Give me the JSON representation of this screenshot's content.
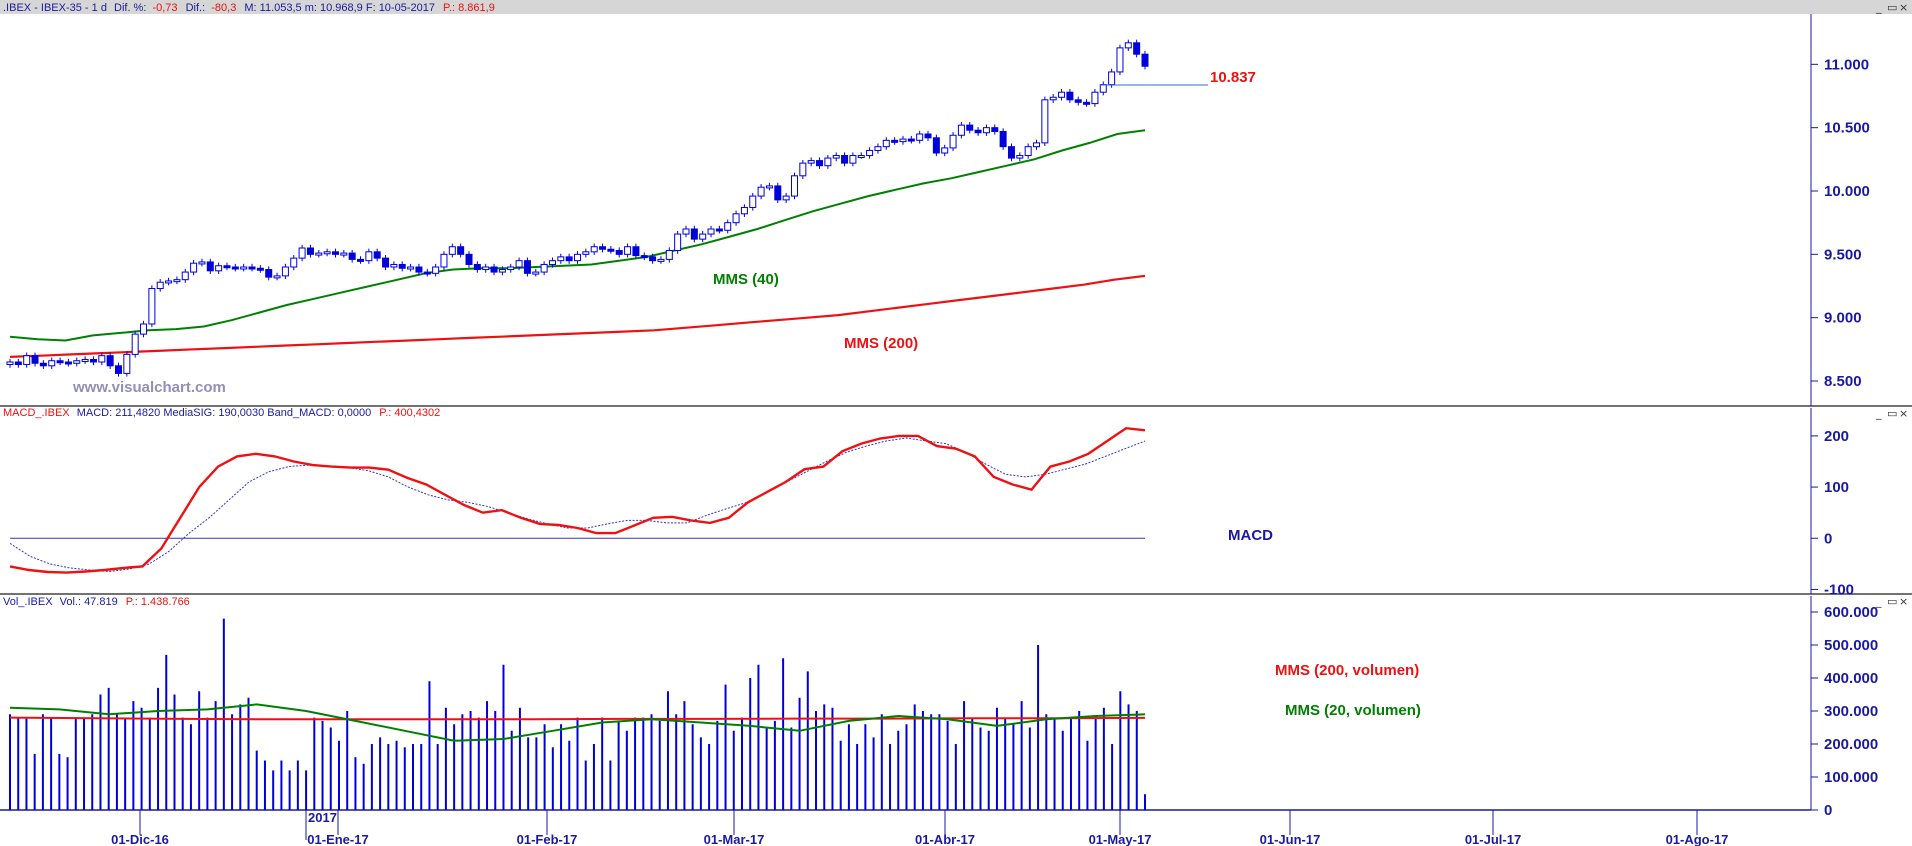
{
  "header": {
    "price": {
      "name": ".IBEX - IBEX-35 -  1 d",
      "dif_pct_label": "Dif. %:",
      "dif_pct_value": "-0,73",
      "dif_label": "Dif.:",
      "dif_value": "-80,3",
      "rest": "M: 11.053,5  m: 10.968,9  F: 10-05-2017",
      "p_value": "P.: 8.861,9"
    },
    "macd": {
      "name": "MACD_.IBEX",
      "rest": "MACD: 211,4820  MediaSIG: 190,0030  Band_MACD: 0,0000",
      "p_value": "P.: 400,4302"
    },
    "volume": {
      "name": "Vol_.IBEX",
      "rest": "Vol.: 47.819",
      "p_value": "P.: 1.438.766"
    }
  },
  "window_buttons": {
    "minimize": "_",
    "restore": "▭",
    "close": "×"
  },
  "labels": {
    "watermark": "www.visualchart.com",
    "mms40": "MMS (40)",
    "mms200": "MMS (200)",
    "last_level": "10.837",
    "macd": "MACD",
    "vol_mms200": "MMS (200, volumen)",
    "vol_mms20": "MMS (20, volumen)",
    "year": "2017"
  },
  "colors": {
    "candles": "#0000dd",
    "mms40": "#008000",
    "mms200": "#ee1111",
    "macd_line": "#ee1111",
    "signal_line": "#3333cc",
    "volume_bars": "#0000dd",
    "axis_text": "#1a1aa0",
    "header_bg": "#d6d6d6"
  },
  "chart_data": [
    {
      "type": "candlestick",
      "title": "IBEX-35 daily",
      "x_ticks": [
        "01-Dic-16",
        "01-Ene-17",
        "01-Feb-17",
        "01-Mar-17",
        "01-Abr-17",
        "01-May-17",
        "01-Jun-17",
        "01-Jul-17",
        "01-Ago-17"
      ],
      "y_ticks": [
        "8.500",
        "9.000",
        "9.500",
        "10.000",
        "10.500",
        "11.000"
      ],
      "ylim": [
        8350,
        11350
      ],
      "close": [
        8650,
        8630,
        8700,
        8640,
        8620,
        8660,
        8650,
        8640,
        8660,
        8670,
        8650,
        8700,
        8620,
        8560,
        8710,
        8870,
        8950,
        9230,
        9280,
        9290,
        9300,
        9360,
        9430,
        9440,
        9370,
        9410,
        9400,
        9390,
        9400,
        9390,
        9380,
        9320,
        9330,
        9400,
        9470,
        9550,
        9500,
        9510,
        9520,
        9500,
        9510,
        9460,
        9450,
        9520,
        9470,
        9400,
        9420,
        9390,
        9400,
        9360,
        9350,
        9400,
        9500,
        9560,
        9500,
        9420,
        9380,
        9400,
        9360,
        9380,
        9400,
        9450,
        9350,
        9360,
        9420,
        9450,
        9480,
        9450,
        9500,
        9520,
        9560,
        9540,
        9530,
        9500,
        9560,
        9490,
        9480,
        9450,
        9460,
        9530,
        9660,
        9700,
        9620,
        9660,
        9700,
        9690,
        9750,
        9820,
        9870,
        9960,
        10030,
        10040,
        9930,
        9960,
        10120,
        10220,
        10240,
        10200,
        10260,
        10280,
        10220,
        10280,
        10280,
        10320,
        10350,
        10400,
        10390,
        10410,
        10400,
        10450,
        10420,
        10300,
        10340,
        10440,
        10520,
        10480,
        10460,
        10500,
        10470,
        10350,
        10260,
        10280,
        10350,
        10380,
        10720,
        10740,
        10780,
        10720,
        10700,
        10690,
        10780,
        10840,
        10940,
        11130,
        11170,
        11080,
        10985
      ],
      "series": [
        {
          "name": "MMS (40)",
          "values": [
            8850,
            8830,
            8820,
            8860,
            8880,
            8900,
            8910,
            8930,
            8980,
            9040,
            9100,
            9150,
            9200,
            9250,
            9300,
            9350,
            9380,
            9390,
            9390,
            9400,
            9410,
            9420,
            9450,
            9480,
            9530,
            9580,
            9640,
            9700,
            9770,
            9840,
            9900,
            9960,
            10010,
            10060,
            10100,
            10150,
            10200,
            10250,
            10320,
            10380,
            10450,
            10480
          ]
        },
        {
          "name": "MMS (200)",
          "values": [
            8690,
            8700,
            8710,
            8720,
            8730,
            8740,
            8750,
            8760,
            8770,
            8780,
            8790,
            8800,
            8810,
            8820,
            8830,
            8840,
            8850,
            8860,
            8870,
            8880,
            8890,
            8900,
            8920,
            8940,
            8960,
            8980,
            9000,
            9020,
            9050,
            9080,
            9110,
            9140,
            9170,
            9200,
            9230,
            9260,
            9300,
            9330
          ]
        }
      ],
      "annotation": {
        "label": "10.837",
        "value": 10837
      }
    },
    {
      "type": "line",
      "title": "MACD",
      "y_ticks": [
        "200",
        "100",
        "0",
        "-100"
      ],
      "ylim": [
        -105,
        235
      ],
      "series": [
        {
          "name": "MACD",
          "values": [
            -55,
            -62,
            -66,
            -67,
            -65,
            -62,
            -58,
            -55,
            -20,
            40,
            100,
            140,
            160,
            165,
            160,
            150,
            143,
            140,
            138,
            138,
            134,
            118,
            105,
            85,
            65,
            50,
            55,
            40,
            28,
            26,
            20,
            10,
            10,
            25,
            40,
            42,
            35,
            30,
            40,
            70,
            90,
            110,
            135,
            140,
            170,
            185,
            195,
            200,
            200,
            180,
            175,
            160,
            120,
            105,
            95,
            140,
            150,
            165,
            190,
            215,
            211
          ]
        },
        {
          "name": "MediaSIG",
          "values": [
            -10,
            -35,
            -50,
            -58,
            -62,
            -65,
            -60,
            -50,
            -25,
            10,
            40,
            75,
            110,
            130,
            140,
            143,
            141,
            138,
            132,
            120,
            100,
            85,
            75,
            70,
            62,
            50,
            38,
            28,
            20,
            20,
            28,
            35,
            35,
            30,
            30,
            45,
            58,
            70,
            90,
            110,
            130,
            150,
            168,
            180,
            190,
            196,
            190,
            185,
            168,
            145,
            125,
            120,
            125,
            135,
            145,
            160,
            175,
            190
          ]
        }
      ],
      "band": 0
    },
    {
      "type": "bar",
      "title": "Volume",
      "y_ticks": [
        "600.000",
        "500.000",
        "400.000",
        "300.000",
        "200.000",
        "100.000",
        "0"
      ],
      "ylim": [
        0,
        600000
      ],
      "values": [
        290000,
        280000,
        280000,
        170000,
        290000,
        280000,
        170000,
        160000,
        280000,
        280000,
        290000,
        350000,
        370000,
        290000,
        280000,
        330000,
        310000,
        280000,
        370000,
        470000,
        350000,
        280000,
        260000,
        360000,
        280000,
        330000,
        580000,
        290000,
        320000,
        340000,
        180000,
        150000,
        120000,
        150000,
        120000,
        150000,
        120000,
        280000,
        270000,
        250000,
        210000,
        300000,
        160000,
        140000,
        200000,
        220000,
        200000,
        210000,
        190000,
        200000,
        200000,
        390000,
        200000,
        310000,
        260000,
        290000,
        300000,
        280000,
        330000,
        300000,
        440000,
        240000,
        310000,
        220000,
        220000,
        260000,
        190000,
        260000,
        210000,
        280000,
        150000,
        200000,
        280000,
        150000,
        270000,
        240000,
        280000,
        280000,
        290000,
        270000,
        360000,
        290000,
        330000,
        260000,
        220000,
        200000,
        270000,
        380000,
        240000,
        280000,
        400000,
        440000,
        250000,
        270000,
        460000,
        250000,
        340000,
        420000,
        300000,
        320000,
        310000,
        210000,
        260000,
        200000,
        260000,
        220000,
        290000,
        200000,
        240000,
        260000,
        320000,
        300000,
        290000,
        290000,
        270000,
        200000,
        330000,
        280000,
        250000,
        240000,
        310000,
        280000,
        260000,
        330000,
        250000,
        500000,
        290000,
        280000,
        240000,
        280000,
        300000,
        210000,
        280000,
        310000,
        200000,
        360000,
        320000,
        300000,
        47819
      ],
      "series": [
        {
          "name": "MMS (200, volumen)",
          "values": [
            280000,
            278000,
            276000,
            275000,
            275000,
            275000,
            275000,
            276000,
            276000,
            277000,
            277000,
            278000,
            278000,
            279000
          ]
        },
        {
          "name": "MMS (20, volumen)",
          "values": [
            310000,
            305000,
            290000,
            300000,
            305000,
            320000,
            300000,
            270000,
            240000,
            210000,
            215000,
            240000,
            265000,
            275000,
            265000,
            255000,
            240000,
            270000,
            285000,
            275000,
            255000,
            275000,
            285000,
            290000
          ]
        }
      ]
    }
  ]
}
